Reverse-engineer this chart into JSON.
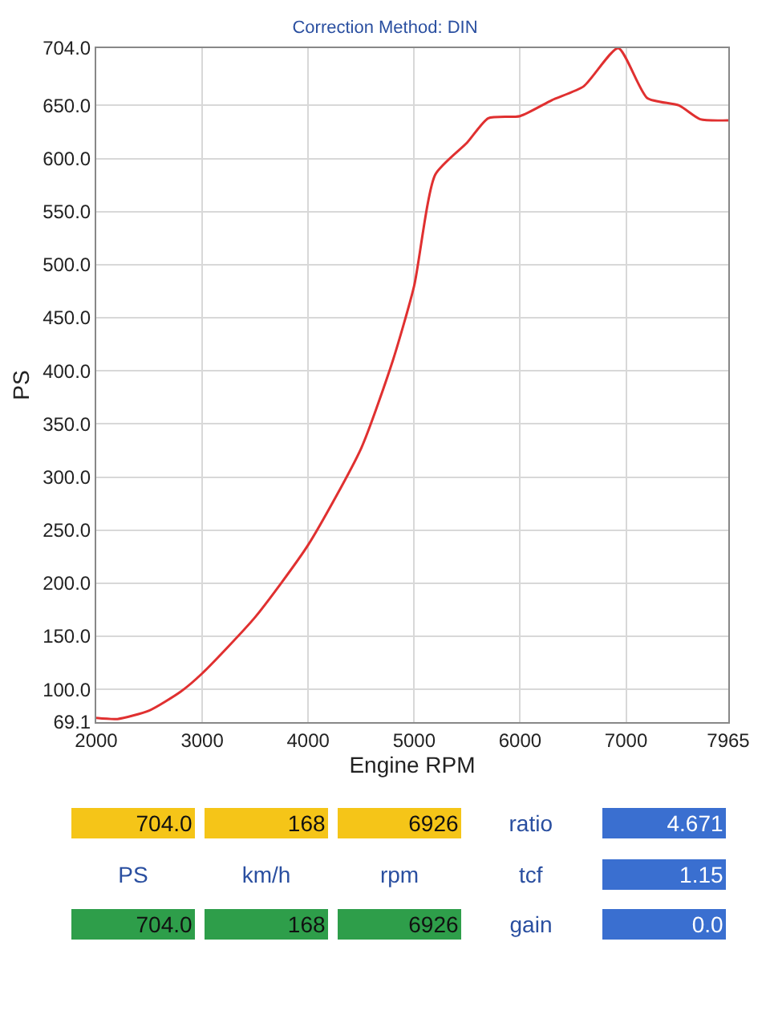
{
  "chart_data": {
    "type": "line",
    "title": "Correction Method: DIN",
    "xlabel": "Engine RPM",
    "ylabel": "PS",
    "x": [
      2000,
      2200,
      2500,
      2800,
      3000,
      3500,
      4000,
      4500,
      4800,
      5000,
      5200,
      5500,
      5700,
      6000,
      6300,
      6600,
      6926,
      7200,
      7500,
      7700,
      7965
    ],
    "series": [
      {
        "color": "#e03030",
        "values": [
          73,
          72,
          80,
          98,
          115,
          168,
          236,
          327,
          410,
          480,
          585,
          615,
          638,
          640,
          655,
          668,
          704,
          657,
          650,
          637,
          636
        ]
      }
    ],
    "xlim": [
      2000,
      7965
    ],
    "xticks": [
      2000,
      3000,
      4000,
      5000,
      6000,
      7000,
      7965
    ],
    "ylim": [
      69.1,
      704.0
    ],
    "yticks": [
      {
        "value": 69.1,
        "label": "69.1"
      },
      {
        "value": 100,
        "label": "100.0"
      },
      {
        "value": 150,
        "label": "150.0"
      },
      {
        "value": 200,
        "label": "200.0"
      },
      {
        "value": 250,
        "label": "250.0"
      },
      {
        "value": 300,
        "label": "300.0"
      },
      {
        "value": 350,
        "label": "350.0"
      },
      {
        "value": 400,
        "label": "400.0"
      },
      {
        "value": 450,
        "label": "450.0"
      },
      {
        "value": 500,
        "label": "500.0"
      },
      {
        "value": 550,
        "label": "550.0"
      },
      {
        "value": 600,
        "label": "600.0"
      },
      {
        "value": 650,
        "label": "650.0"
      },
      {
        "value": 704.0,
        "label": "704.0"
      }
    ],
    "grid": true,
    "marker": "none",
    "line_style": "solid",
    "annotations": [
      "704.0",
      "168",
      "6926",
      "ratio",
      "4.671",
      "PS",
      "km/h",
      "rpm",
      "tcf",
      "1.15",
      "704.0",
      "168",
      "6926",
      "gain",
      "0.0"
    ]
  }
}
